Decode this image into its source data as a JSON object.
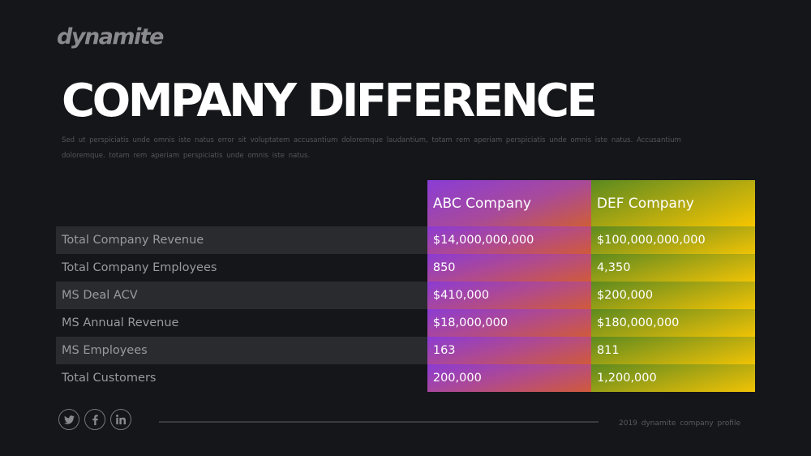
{
  "logo": "dynamite",
  "title": "COMPANY DIFFERENCE",
  "description": "Sed ut perspiciatis unde omnis iste natus error sit voluptatem accusantium doloremque laudantium, totam rem aperiam perspiciatis unde omnis iste natus. Accusantium doloremque. totam rem aperiam perspiciatis unde omnis iste natus.",
  "table": {
    "headers": [
      "ABC Company",
      "DEF Company"
    ],
    "rows": [
      {
        "label": "Total Company Revenue",
        "abc": "$14,000,000,000",
        "def": "$100,000,000,000"
      },
      {
        "label": "Total Company Employees",
        "abc": "850",
        "def": "4,350"
      },
      {
        "label": "MS Deal ACV",
        "abc": "$410,000",
        "def": "$200,000"
      },
      {
        "label": "MS Annual Revenue",
        "abc": "$18,000,000",
        "def": "$180,000,000"
      },
      {
        "label": "MS Employees",
        "abc": "163",
        "def": "811"
      },
      {
        "label": "Total Customers",
        "abc": "200,000",
        "def": "1,200,000"
      }
    ]
  },
  "social": [
    "twitter-icon",
    "facebook-icon",
    "linkedin-icon"
  ],
  "footer": "2019 dynamite company profile",
  "colors": {
    "background": "#151619",
    "abc_gradient": [
      "#8a3cd6",
      "#cf5d36"
    ],
    "def_gradient": [
      "#5a8a20",
      "#f6c600"
    ]
  }
}
